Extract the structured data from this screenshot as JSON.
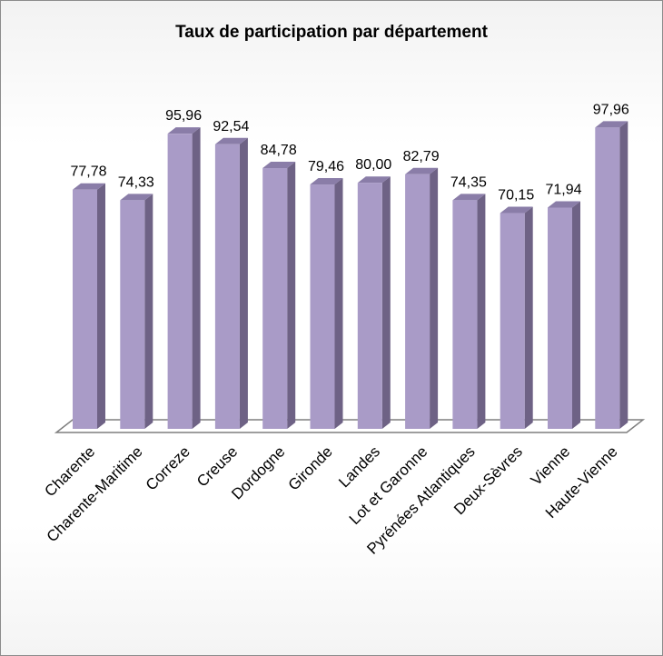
{
  "chart_data": {
    "type": "bar",
    "title": "Taux de participation par département",
    "categories": [
      "Charente",
      "Charente-Maritime",
      "Correze",
      "Creuse",
      "Dordogne",
      "Gironde",
      "Landes",
      "Lot et Garonne",
      "Pyrénées Atlantiques",
      "Deux-Sèvres",
      "Vienne",
      "Haute-Vienne"
    ],
    "values": [
      77.78,
      74.33,
      95.96,
      92.54,
      84.78,
      79.46,
      80.0,
      82.79,
      74.35,
      70.15,
      71.94,
      97.96
    ],
    "data_labels": [
      "77,78",
      "74,33",
      "95,96",
      "92,54",
      "84,78",
      "79,46",
      "80,00",
      "82,79",
      "74,35",
      "70,15",
      "71,94",
      "97,96"
    ],
    "xlabel": "",
    "ylabel": "",
    "ylim": [
      0,
      100
    ],
    "grid": false,
    "legend": "none",
    "style": "3d-column",
    "colors": {
      "bar_front": "#a99bc7",
      "bar_side": "#6e6285",
      "bar_top": "#8a7da8",
      "floor": "#ffffff",
      "floor_stroke": "#7f7f7f"
    }
  }
}
